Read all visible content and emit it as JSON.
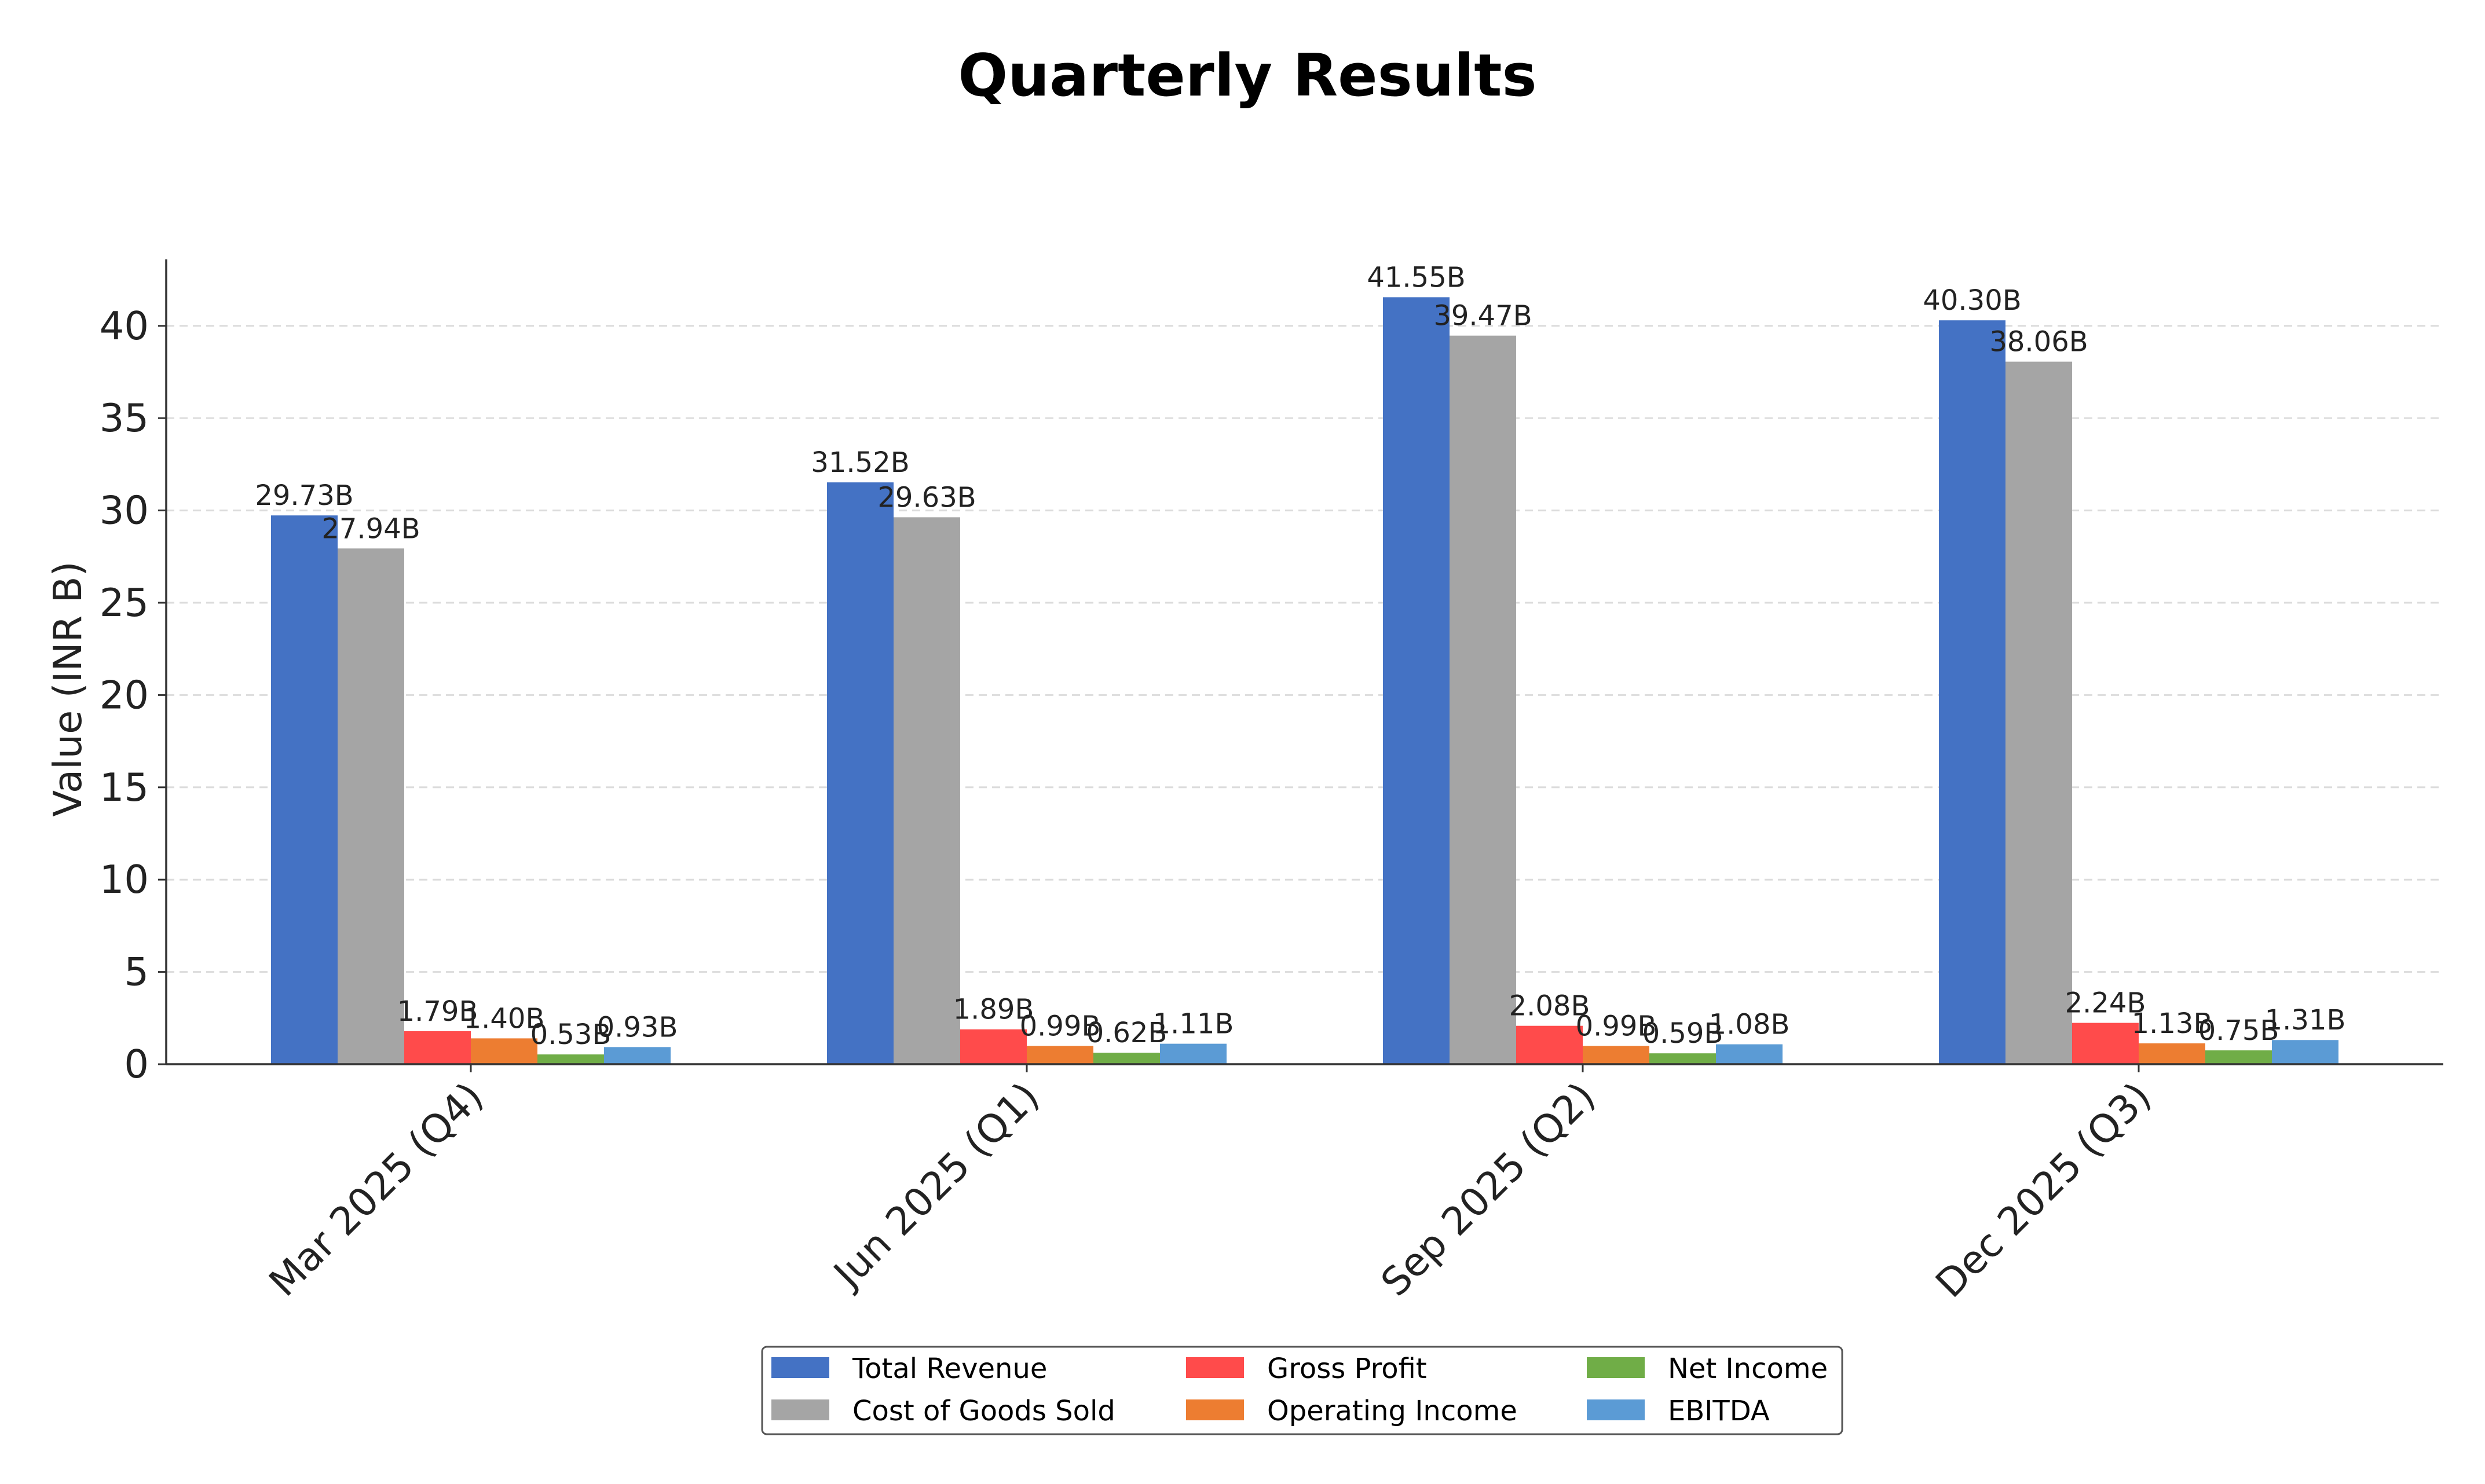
{
  "chart_data": {
    "type": "bar",
    "title": "Quarterly Results",
    "xlabel": "",
    "ylabel": "Value (INR B)",
    "ylim": [
      0,
      43.6
    ],
    "yticks": [
      0,
      5,
      10,
      15,
      20,
      25,
      30,
      35,
      40
    ],
    "grid": "horizontal-dashed",
    "legend_position": "bottom-center",
    "categories": [
      "Mar 2025 (Q4)",
      "Jun 2025 (Q1)",
      "Sep 2025 (Q2)",
      "Dec 2025 (Q3)"
    ],
    "series": [
      {
        "name": "Total Revenue",
        "color": "#4472c4",
        "values": [
          29.73,
          31.52,
          41.55,
          40.3
        ],
        "labels": [
          "29.73B",
          "31.52B",
          "41.55B",
          "40.30B"
        ]
      },
      {
        "name": "Cost of Goods Sold",
        "color": "#a5a5a5",
        "values": [
          27.94,
          29.63,
          39.47,
          38.06
        ],
        "labels": [
          "27.94B",
          "29.63B",
          "39.47B",
          "38.06B"
        ]
      },
      {
        "name": "Gross Profit",
        "color": "#ff4b4b",
        "values": [
          1.79,
          1.89,
          2.08,
          2.24
        ],
        "labels": [
          "1.79B",
          "1.89B",
          "2.08B",
          "2.24B"
        ]
      },
      {
        "name": "Operating Income",
        "color": "#ed7d31",
        "values": [
          1.4,
          0.99,
          0.99,
          1.13
        ],
        "labels": [
          "1.40B",
          "0.99B",
          "0.99B",
          "1.13B"
        ]
      },
      {
        "name": "Net Income",
        "color": "#70ad47",
        "values": [
          0.53,
          0.62,
          0.59,
          0.75
        ],
        "labels": [
          "0.53B",
          "0.62B",
          "0.59B",
          "0.75B"
        ]
      },
      {
        "name": "EBITDA",
        "color": "#5b9bd5",
        "values": [
          0.93,
          1.11,
          1.08,
          1.31
        ],
        "labels": [
          "0.93B",
          "1.11B",
          "1.08B",
          "1.31B"
        ]
      }
    ]
  }
}
